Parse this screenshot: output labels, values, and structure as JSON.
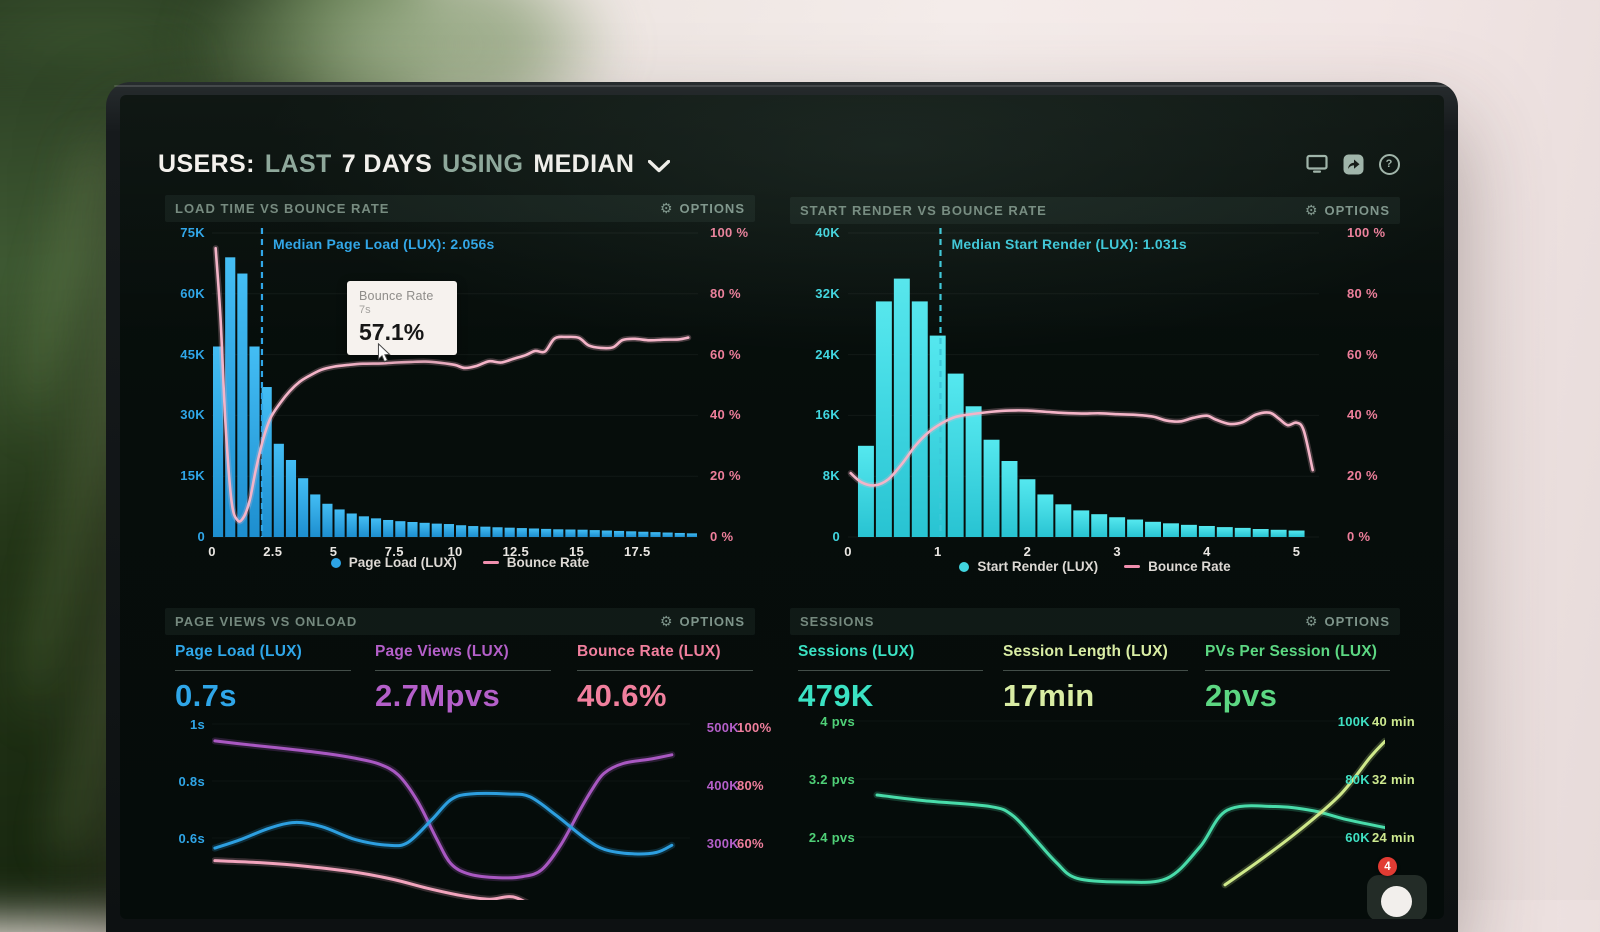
{
  "header": {
    "title_parts": [
      {
        "text": "USERS:",
        "style": "strong"
      },
      {
        "text": "LAST",
        "style": "muted"
      },
      {
        "text": "7 DAYS",
        "style": "strong"
      },
      {
        "text": "USING",
        "style": "muted"
      },
      {
        "text": "MEDIAN",
        "style": "strong"
      }
    ],
    "toolbar_icons": [
      "display-icon",
      "share-icon",
      "help-icon"
    ]
  },
  "tooltip": {
    "title": "Bounce Rate",
    "subtitle": "7s",
    "value": "57.1%"
  },
  "chat_badge_count": "4",
  "colors": {
    "accent_blue": "#2fa6e8",
    "accent_cyan": "#41d6e0",
    "accent_pink": "#ee7f9b",
    "line_pink": "#f4b4c8",
    "accent_purple": "#b45fc9",
    "accent_teal": "#3fe0c2",
    "accent_lime": "#cde98f",
    "accent_green": "#4fd077",
    "text_sage": "#8ca699",
    "panel_title": "#75897e",
    "white_text": "#f4f1ed"
  },
  "chart_data": [
    {
      "id": "load-time-vs-bounce-rate",
      "type": "bar+line",
      "title": "LOAD TIME VS BOUNCE RATE",
      "options_label": "OPTIONS",
      "x_max": 20,
      "x_ticks": [
        {
          "v": 0,
          "label": "0"
        },
        {
          "v": 2.5,
          "label": "2.5"
        },
        {
          "v": 5,
          "label": "5"
        },
        {
          "v": 7.5,
          "label": "7.5"
        },
        {
          "v": 10,
          "label": "10"
        },
        {
          "v": 12.5,
          "label": "12.5"
        },
        {
          "v": 15,
          "label": "15"
        },
        {
          "v": 17.5,
          "label": "17.5"
        }
      ],
      "left_axis": {
        "ticks": [
          "75K",
          "60K",
          "45K",
          "30K",
          "15K",
          "0"
        ],
        "max": 75,
        "color": "#2fa6e8"
      },
      "right_axis": {
        "ticks": [
          "100 %",
          "80 %",
          "60 %",
          "40 %",
          "20 %",
          "0 %"
        ],
        "max": 100,
        "color": "#ee7f9b"
      },
      "bars": {
        "name": "Page Load (LUX)",
        "color_top": "#43bdf4",
        "color_bottom": "#1d8ecf",
        "bin_start": 0,
        "bin_width": 0.5,
        "values_thousands": [
          47,
          69,
          65,
          47,
          37,
          23,
          19,
          14.5,
          10.5,
          8.2,
          6.8,
          5.8,
          5.1,
          4.6,
          4.2,
          3.9,
          3.7,
          3.5,
          3.3,
          3.2,
          2.9,
          2.7,
          2.55,
          2.4,
          2.3,
          2.2,
          2.1,
          2.0,
          1.9,
          1.85,
          1.8,
          1.7,
          1.6,
          1.5,
          1.4,
          1.3,
          1.2,
          1.1,
          1.0,
          0.9
        ]
      },
      "line": {
        "name": "Bounce Rate",
        "color": "#f4b4c8",
        "points_s_pct": [
          [
            0.15,
            95
          ],
          [
            0.35,
            72
          ],
          [
            0.55,
            38
          ],
          [
            0.8,
            12
          ],
          [
            1.05,
            5.5
          ],
          [
            1.3,
            6.5
          ],
          [
            1.55,
            12
          ],
          [
            1.8,
            22
          ],
          [
            2.1,
            32
          ],
          [
            2.4,
            39
          ],
          [
            2.8,
            44
          ],
          [
            3.2,
            48
          ],
          [
            3.6,
            51
          ],
          [
            4.0,
            53
          ],
          [
            4.5,
            55
          ],
          [
            5.0,
            56
          ],
          [
            5.6,
            56.6
          ],
          [
            6.2,
            57
          ],
          [
            7.0,
            57.1
          ],
          [
            7.6,
            57.4
          ],
          [
            8.2,
            57.6
          ],
          [
            8.8,
            57.7
          ],
          [
            9.4,
            57.3
          ],
          [
            10.0,
            56.6
          ],
          [
            10.4,
            55.6
          ],
          [
            10.9,
            56.3
          ],
          [
            11.4,
            57.8
          ],
          [
            11.9,
            57.4
          ],
          [
            12.4,
            58.6
          ],
          [
            12.9,
            59.8
          ],
          [
            13.3,
            61.2
          ],
          [
            13.7,
            61.0
          ],
          [
            14.1,
            65.3
          ],
          [
            14.6,
            65.8
          ],
          [
            15.1,
            65.5
          ],
          [
            15.5,
            63.0
          ],
          [
            16.0,
            62.2
          ],
          [
            16.5,
            62.4
          ],
          [
            16.9,
            64.8
          ],
          [
            17.4,
            65.2
          ],
          [
            18.0,
            64.7
          ],
          [
            18.6,
            64.9
          ],
          [
            19.2,
            65.0
          ],
          [
            19.6,
            65.6
          ]
        ]
      },
      "median": {
        "x": 2.056,
        "label": "Median Page Load (LUX): 2.056s",
        "color": "#2fa6e8"
      },
      "legend": [
        {
          "label": "Page Load (LUX)",
          "marker": "dot",
          "color": "#2da4e6"
        },
        {
          "label": "Bounce Rate",
          "marker": "line",
          "color": "#ef8fae"
        }
      ]
    },
    {
      "id": "start-render-vs-bounce-rate",
      "type": "bar+line",
      "title": "START RENDER VS BOUNCE RATE",
      "options_label": "OPTIONS",
      "x_max": 5.25,
      "x_ticks": [
        {
          "v": 0,
          "label": "0"
        },
        {
          "v": 1,
          "label": "1"
        },
        {
          "v": 2,
          "label": "2"
        },
        {
          "v": 3,
          "label": "3"
        },
        {
          "v": 4,
          "label": "4"
        },
        {
          "v": 5,
          "label": "5"
        }
      ],
      "left_axis": {
        "ticks": [
          "40K",
          "32K",
          "24K",
          "16K",
          "8K",
          "0"
        ],
        "max": 40,
        "color": "#41d6e0"
      },
      "right_axis": {
        "ticks": [
          "100 %",
          "80 %",
          "60 %",
          "40 %",
          "20 %",
          "0 %"
        ],
        "max": 100,
        "color": "#ee7f9b"
      },
      "bars": {
        "name": "Start Render (LUX)",
        "color_top": "#55e8ef",
        "color_bottom": "#28c3d2",
        "bin_start": 0.1,
        "bin_width": 0.2,
        "values_thousands": [
          12,
          31,
          34,
          31,
          26.5,
          21.5,
          17.2,
          12.8,
          10,
          7.6,
          5.6,
          4.3,
          3.5,
          3.0,
          2.6,
          2.3,
          2.0,
          1.8,
          1.6,
          1.45,
          1.3,
          1.2,
          1.05,
          0.95,
          0.85
        ]
      },
      "line": {
        "name": "Bounce Rate",
        "color": "#f4b4c8",
        "points_s_pct": [
          [
            0.03,
            21
          ],
          [
            0.15,
            18
          ],
          [
            0.3,
            17
          ],
          [
            0.45,
            19
          ],
          [
            0.6,
            24
          ],
          [
            0.75,
            30
          ],
          [
            0.9,
            34.5
          ],
          [
            1.05,
            37.5
          ],
          [
            1.2,
            39.5
          ],
          [
            1.4,
            40.5
          ],
          [
            1.6,
            41.2
          ],
          [
            1.8,
            41.6
          ],
          [
            2.0,
            41.6
          ],
          [
            2.2,
            41.2
          ],
          [
            2.4,
            40.8
          ],
          [
            2.6,
            40.6
          ],
          [
            2.8,
            40.7
          ],
          [
            3.0,
            40.4
          ],
          [
            3.2,
            40.2
          ],
          [
            3.4,
            39.6
          ],
          [
            3.55,
            38.3
          ],
          [
            3.7,
            38.0
          ],
          [
            3.85,
            39.2
          ],
          [
            4.0,
            39.9
          ],
          [
            4.1,
            38.6
          ],
          [
            4.25,
            37.2
          ],
          [
            4.4,
            37.8
          ],
          [
            4.55,
            40.3
          ],
          [
            4.7,
            40.9
          ],
          [
            4.8,
            39.0
          ],
          [
            4.9,
            36.8
          ],
          [
            5.0,
            37.6
          ],
          [
            5.08,
            35.0
          ],
          [
            5.18,
            22.0
          ]
        ]
      },
      "median": {
        "x": 1.031,
        "label": "Median Start Render (LUX): 1.031s",
        "color": "#3cc8da"
      },
      "legend": [
        {
          "label": "Start Render (LUX)",
          "marker": "dot",
          "color": "#41d6e0"
        },
        {
          "label": "Bounce Rate",
          "marker": "line",
          "color": "#ef8fae"
        }
      ]
    },
    {
      "id": "page-views-vs-onload",
      "type": "line",
      "title": "PAGE VIEWS VS ONLOAD",
      "options_label": "OPTIONS",
      "metrics": [
        {
          "label": "Page Load (LUX)",
          "value": "0.7s",
          "color": "#2fa6e8"
        },
        {
          "label": "Page Views (LUX)",
          "value": "2.7Mpvs",
          "color": "#b45fc9"
        },
        {
          "label": "Bounce Rate (LUX)",
          "value": "40.6%",
          "color": "#f07f9d"
        }
      ],
      "left_axis": {
        "ticks": [
          "1s",
          "0.8s",
          "0.6s"
        ],
        "color": "#2fa6e8"
      },
      "right_axes": [
        {
          "ticks": [
            "500K",
            "400K",
            "300K"
          ],
          "color": "#b45fc9"
        },
        {
          "ticks": [
            "100%",
            "80%",
            "60%"
          ],
          "color": "#f07f9d"
        }
      ],
      "series": [
        {
          "name": "Page Views (LUX)",
          "axis": "views_k",
          "color": "#a958c2",
          "points": [
            [
              0.006,
              464
            ],
            [
              0.08,
              457
            ],
            [
              0.16,
              450
            ],
            [
              0.24,
              442
            ],
            [
              0.3,
              434
            ],
            [
              0.35,
              424
            ],
            [
              0.39,
              405
            ],
            [
              0.43,
              360
            ],
            [
              0.47,
              295
            ],
            [
              0.5,
              252
            ],
            [
              0.54,
              234
            ],
            [
              0.6,
              228
            ],
            [
              0.65,
              230
            ],
            [
              0.69,
              242
            ],
            [
              0.73,
              285
            ],
            [
              0.77,
              345
            ],
            [
              0.795,
              380
            ],
            [
              0.82,
              408
            ],
            [
              0.86,
              425
            ],
            [
              0.92,
              433
            ],
            [
              0.962,
              440
            ]
          ]
        },
        {
          "name": "Page Load (LUX)",
          "axis": "seconds",
          "color": "#2d9fe0",
          "points": [
            [
              0.006,
              0.54
            ],
            [
              0.06,
              0.57
            ],
            [
              0.12,
              0.61
            ],
            [
              0.174,
              0.63
            ],
            [
              0.23,
              0.615
            ],
            [
              0.3,
              0.57
            ],
            [
              0.37,
              0.55
            ],
            [
              0.41,
              0.56
            ],
            [
              0.46,
              0.64
            ],
            [
              0.5,
              0.71
            ],
            [
              0.54,
              0.73
            ],
            [
              0.62,
              0.73
            ],
            [
              0.665,
              0.72
            ],
            [
              0.72,
              0.655
            ],
            [
              0.78,
              0.575
            ],
            [
              0.822,
              0.535
            ],
            [
              0.88,
              0.52
            ],
            [
              0.93,
              0.525
            ],
            [
              0.962,
              0.55
            ]
          ]
        },
        {
          "name": "Bounce Rate (LUX)",
          "axis": "percent",
          "color": "#f2a4bd",
          "points": [
            [
              0.006,
              51.5
            ],
            [
              0.1,
              50.8
            ],
            [
              0.2,
              49.5
            ],
            [
              0.3,
              47.5
            ],
            [
              0.38,
              45
            ],
            [
              0.45,
              42
            ],
            [
              0.52,
              39.5
            ],
            [
              0.58,
              38.2
            ],
            [
              0.63,
              39.0
            ],
            [
              0.68,
              35
            ]
          ]
        }
      ]
    },
    {
      "id": "sessions",
      "type": "line",
      "title": "SESSIONS",
      "options_label": "OPTIONS",
      "metrics": [
        {
          "label": "Sessions (LUX)",
          "value": "479K",
          "color": "#3be2c3"
        },
        {
          "label": "Session Length (LUX)",
          "value": "17min",
          "color": "#d9eda4"
        },
        {
          "label": "PVs Per Session (LUX)",
          "value": "2pvs",
          "color": "#5cd782"
        }
      ],
      "left_axis": {
        "ticks": [
          "4 pvs",
          "3.2 pvs",
          "2.4 pvs"
        ],
        "color": "#4fd077"
      },
      "right_axes": [
        {
          "ticks": [
            "100K",
            "80K",
            "60K"
          ],
          "color": "#3fe0c2"
        },
        {
          "ticks": [
            "40 min",
            "32 min",
            "24 min"
          ],
          "color": "#cde98f"
        }
      ],
      "series": [
        {
          "name": "PVs Per Session (LUX)",
          "axis": "pvs",
          "color": "#49dcaa",
          "points": [
            [
              0.073,
              2.98
            ],
            [
              0.16,
              2.9
            ],
            [
              0.28,
              2.82
            ],
            [
              0.32,
              2.7
            ],
            [
              0.358,
              2.4
            ],
            [
              0.4,
              2.05
            ],
            [
              0.438,
              1.83
            ],
            [
              0.52,
              1.78
            ],
            [
              0.602,
              1.83
            ],
            [
              0.662,
              2.26
            ],
            [
              0.712,
              2.77
            ],
            [
              0.8,
              2.82
            ],
            [
              0.87,
              2.76
            ],
            [
              0.93,
              2.64
            ],
            [
              1.0,
              2.53
            ]
          ]
        },
        {
          "name": "Session Length (LUX)",
          "axis": "minutes",
          "color": "#cfe98a",
          "points": [
            [
              0.708,
              17.4
            ],
            [
              0.772,
              20.8
            ],
            [
              0.845,
              25.0
            ],
            [
              0.918,
              29.8
            ],
            [
              0.973,
              35.0
            ],
            [
              1.0,
              37.2
            ]
          ]
        }
      ]
    }
  ]
}
